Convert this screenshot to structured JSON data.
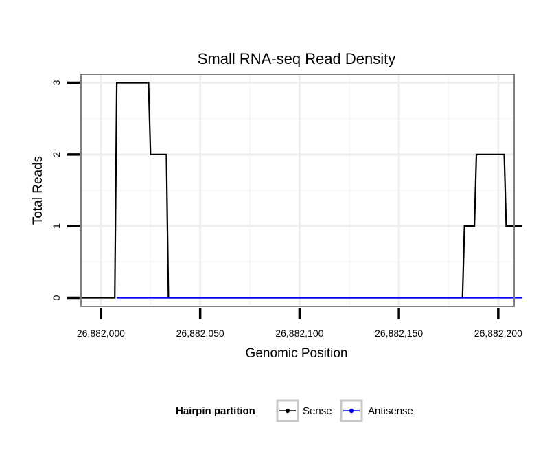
{
  "chart_data": {
    "type": "line",
    "title": "Small RNA-seq Read Density",
    "xlabel": "Genomic Position",
    "ylabel": "Total Reads",
    "xlim": [
      26881990,
      26882208
    ],
    "ylim": [
      -0.12,
      3.12
    ],
    "x_ticks": [
      26882000,
      26882050,
      26882100,
      26882150,
      26882200
    ],
    "x_tick_labels": [
      "26,882,000",
      "26,882,050",
      "26,882,100",
      "26,882,150",
      "26,882,200"
    ],
    "y_ticks": [
      0,
      1,
      2,
      3
    ],
    "y_tick_labels": [
      "0",
      "1",
      "2",
      "3"
    ],
    "grid": true,
    "series": [
      {
        "name": "Sense",
        "color": "#000000",
        "x": [
          26881990,
          26882007,
          26882008,
          26882024,
          26882025,
          26882033,
          26882034,
          26882182,
          26882183,
          26882188,
          26882189,
          26882203,
          26882204,
          26882212
        ],
        "y": [
          0,
          0,
          3,
          3,
          2,
          2,
          0,
          0,
          1,
          1,
          2,
          2,
          1,
          1
        ]
      },
      {
        "name": "Antisense",
        "color": "#0000ff",
        "x": [
          26882008,
          26882212
        ],
        "y": [
          0,
          0
        ]
      }
    ],
    "legend": {
      "title": "Hairpin partition",
      "position": "bottom",
      "entries": [
        "Sense",
        "Antisense"
      ]
    }
  }
}
